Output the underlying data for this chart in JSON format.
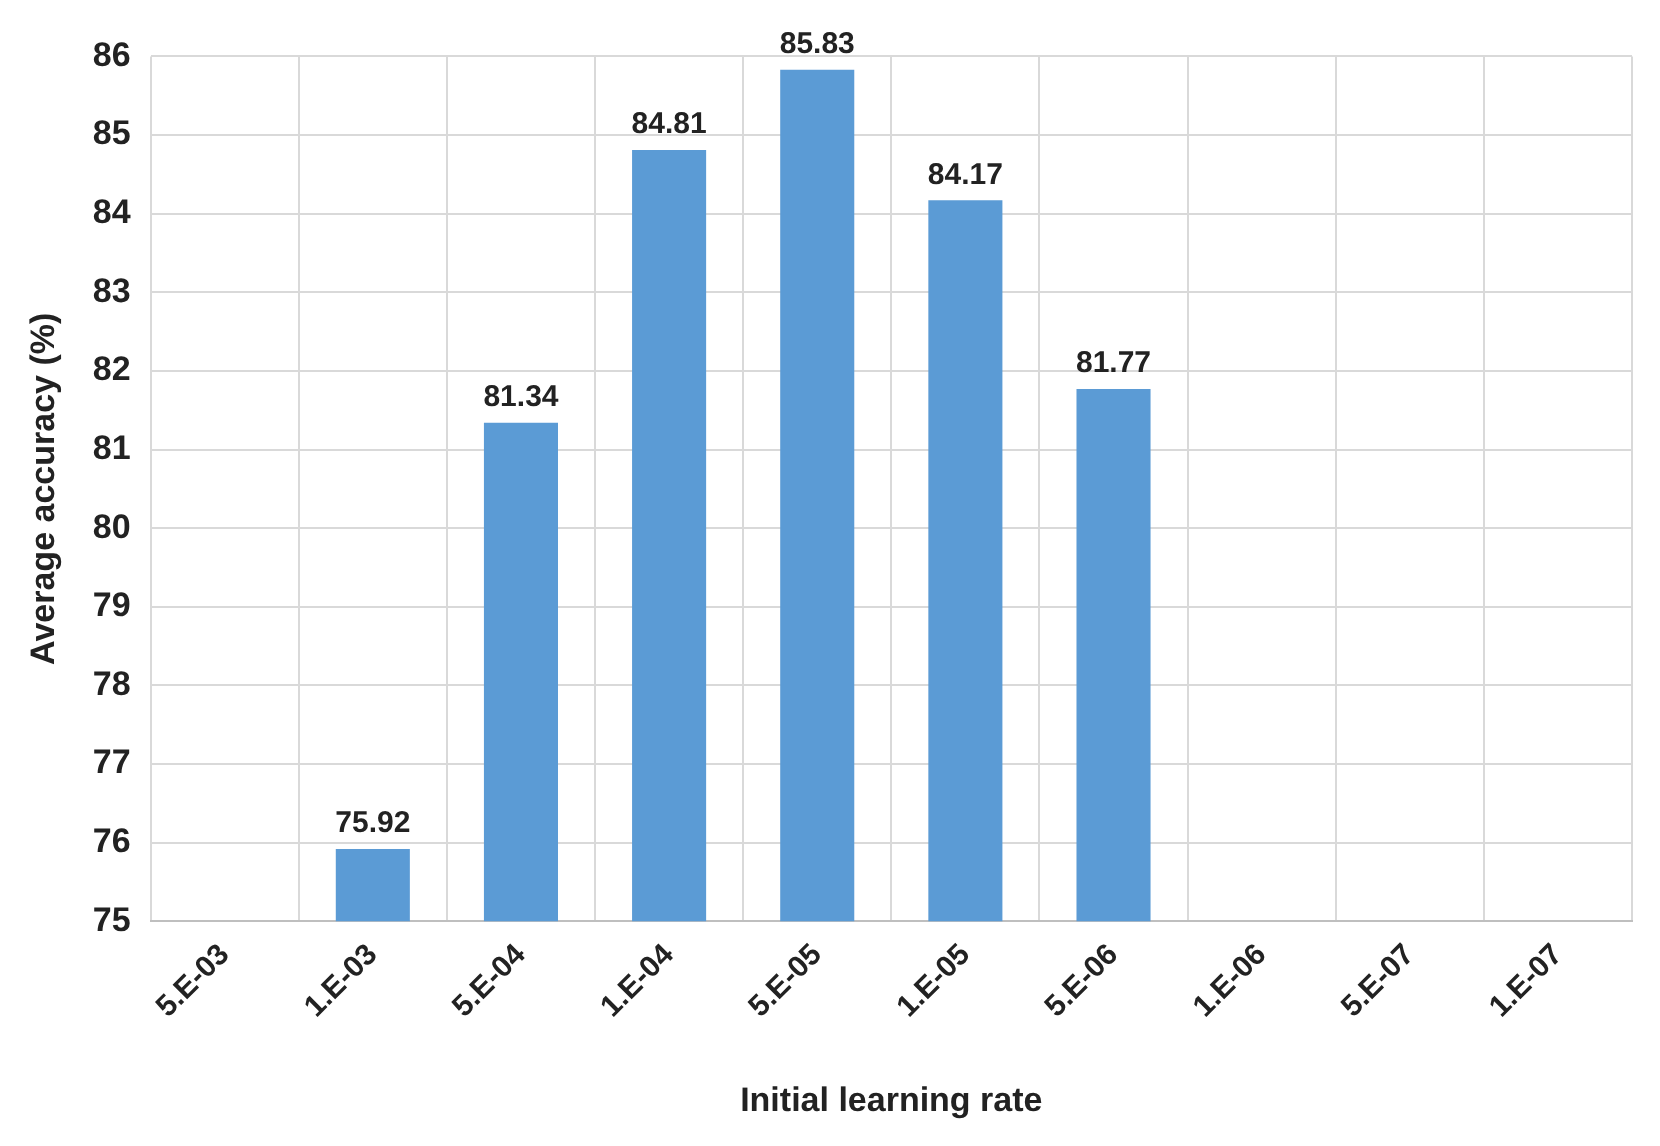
{
  "chart_data": {
    "type": "bar",
    "xlabel": "Initial learning rate",
    "ylabel": "Average accuracy (%)",
    "categories": [
      "5.E-03",
      "1.E-03",
      "5.E-04",
      "1.E-04",
      "5.E-05",
      "1.E-05",
      "5.E-06",
      "1.E-06",
      "5.E-07",
      "1.E-07"
    ],
    "values": [
      null,
      75.92,
      81.34,
      84.81,
      85.83,
      84.17,
      81.77,
      null,
      null,
      null
    ],
    "color": "#5b9bd5",
    "ylim": [
      75,
      86
    ],
    "yticks": [
      75,
      76,
      77,
      78,
      79,
      80,
      81,
      82,
      83,
      84,
      85,
      86
    ],
    "grid": true,
    "data_labels": true,
    "legend": false
  }
}
